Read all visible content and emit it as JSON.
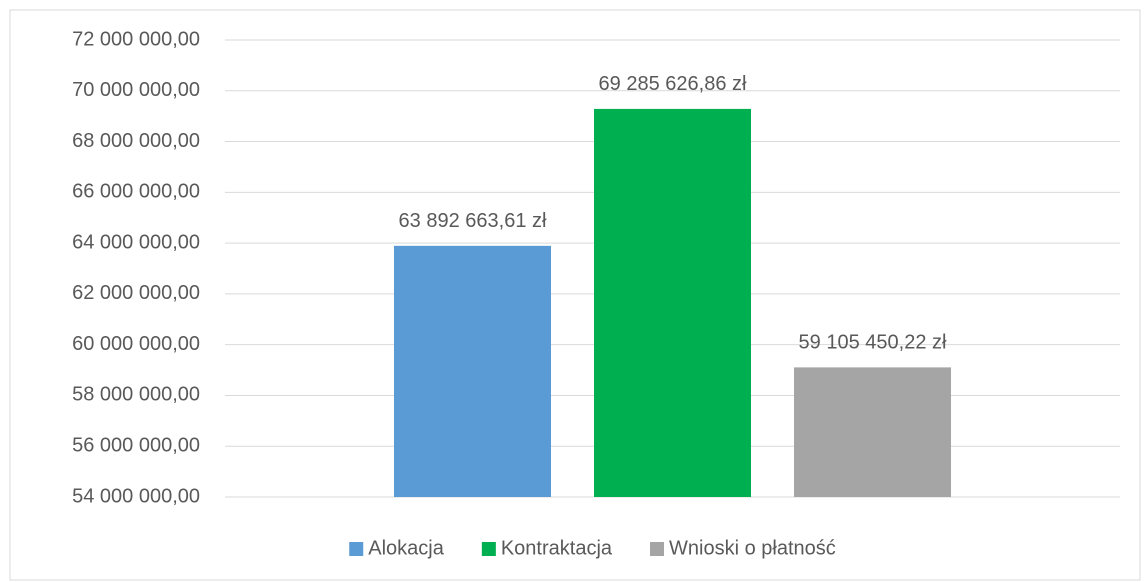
{
  "chart_data": {
    "type": "bar",
    "categories": [
      null
    ],
    "series": [
      {
        "name": "Alokacja",
        "color": "#5b9bd5",
        "values": [
          63892663.61
        ],
        "value_labels": [
          "63 892 663,61 zł"
        ]
      },
      {
        "name": "Kontraktacja",
        "color": "#00b050",
        "values": [
          69285626.86
        ],
        "value_labels": [
          "69 285 626,86 zł"
        ]
      },
      {
        "name": "Wnioski o płatność",
        "color": "#a5a5a5",
        "values": [
          59105450.22
        ],
        "value_labels": [
          "59 105 450,22 zł"
        ]
      }
    ],
    "ylim": [
      54000000,
      72000000
    ],
    "yticks": [
      {
        "value": 54000000,
        "label": "54 000 000,00"
      },
      {
        "value": 56000000,
        "label": "56 000 000,00"
      },
      {
        "value": 58000000,
        "label": "58 000 000,00"
      },
      {
        "value": 60000000,
        "label": "60 000 000,00"
      },
      {
        "value": 62000000,
        "label": "62 000 000,00"
      },
      {
        "value": 64000000,
        "label": "64 000 000,00"
      },
      {
        "value": 66000000,
        "label": "66 000 000,00"
      },
      {
        "value": 68000000,
        "label": "68 000 000,00"
      },
      {
        "value": 70000000,
        "label": "70 000 000,00"
      },
      {
        "value": 72000000,
        "label": "72 000 000,00"
      }
    ],
    "grid": true,
    "legend": "bottom"
  }
}
